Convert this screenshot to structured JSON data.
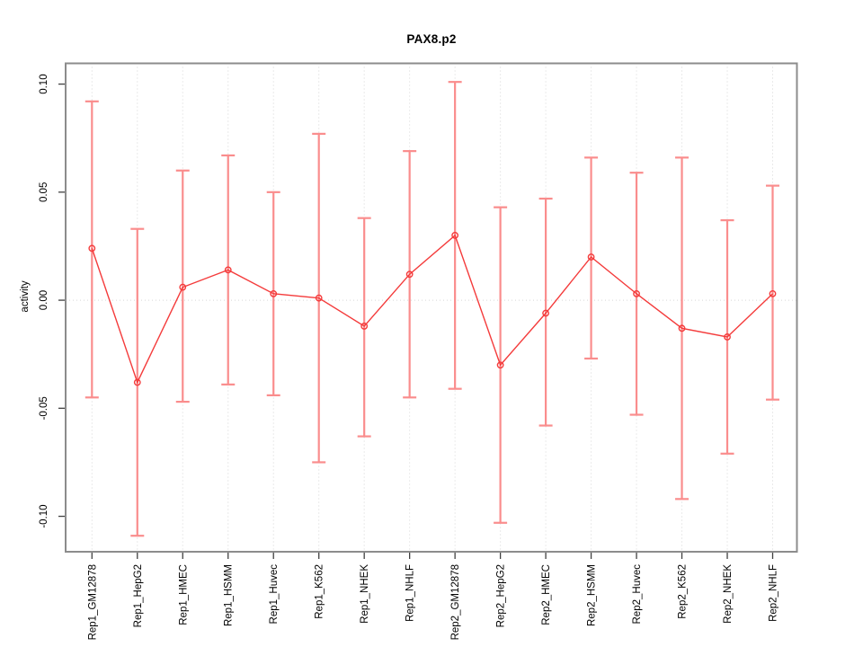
{
  "header": {
    "title": "PAX8.p2"
  },
  "chart_data": {
    "type": "line",
    "title": "PAX8.p2",
    "subtitle": "",
    "xlabel": "",
    "ylabel": "activity",
    "legend": "none",
    "grid": "dotted vertical line per category; dotted horizontal line at y=0",
    "ylim": [
      -0.1164,
      0.1096
    ],
    "yticks": [
      -0.1,
      -0.05,
      0.0,
      0.05,
      0.1
    ],
    "categories": [
      "Rep1_GM12878",
      "Rep1_HepG2",
      "Rep1_HMEC",
      "Rep1_HSMM",
      "Rep1_Huvec",
      "Rep1_K562",
      "Rep1_NHEK",
      "Rep1_NHLF",
      "Rep2_GM12878",
      "Rep2_HepG2",
      "Rep2_HMEC",
      "Rep2_HSMM",
      "Rep2_Huvec",
      "Rep2_K562",
      "Rep2_NHEK",
      "Rep2_NHLF"
    ],
    "series": [
      {
        "name": "activity",
        "marker": "open-circle",
        "values": [
          0.024,
          -0.038,
          0.006,
          0.014,
          0.003,
          0.001,
          -0.012,
          0.012,
          0.03,
          -0.03,
          -0.006,
          0.02,
          0.003,
          -0.013,
          -0.017,
          0.003
        ],
        "error_high": [
          0.092,
          0.033,
          0.06,
          0.067,
          0.05,
          0.077,
          0.038,
          0.069,
          0.101,
          0.043,
          0.047,
          0.066,
          0.059,
          0.066,
          0.037,
          0.053
        ],
        "error_low": [
          -0.045,
          -0.109,
          -0.047,
          -0.039,
          -0.044,
          -0.075,
          -0.063,
          -0.045,
          -0.041,
          -0.103,
          -0.058,
          -0.027,
          -0.053,
          -0.092,
          -0.071,
          -0.046
        ]
      }
    ],
    "colors": {
      "series_line": "#f43b3b",
      "error_bar": "#fa8d8d",
      "frame": "#8c8c8c",
      "gridline": "#d6d6d6",
      "tick": "#404040",
      "text": "#000000",
      "background": "#ffffff"
    }
  }
}
